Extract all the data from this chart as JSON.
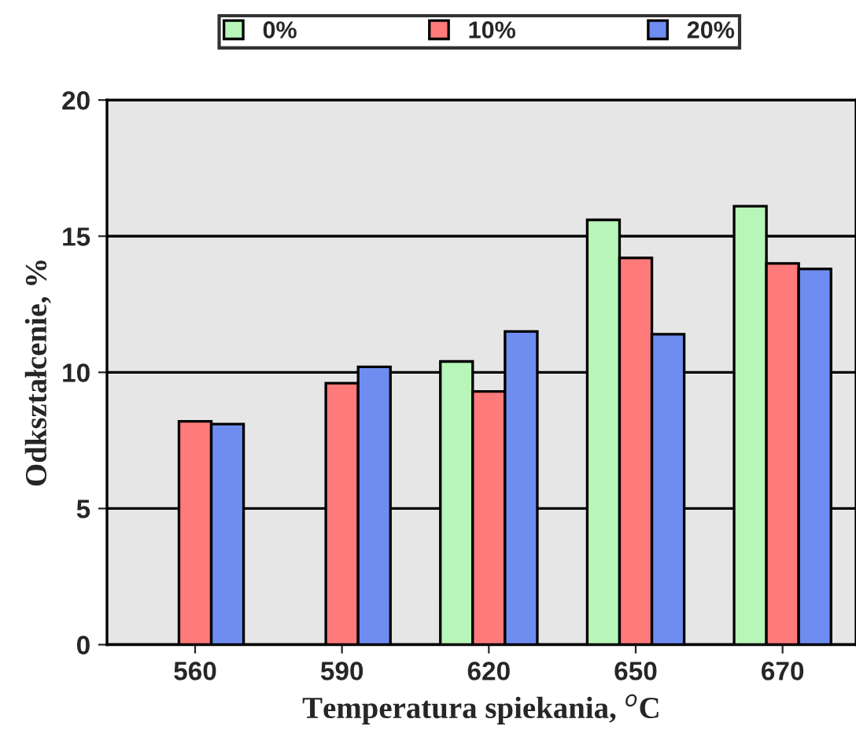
{
  "chart_data": {
    "type": "bar",
    "xlabel": "Temperatura spiekania, $^{o}$C",
    "ylabel": "Odkształcenie, %",
    "categories": [
      "560",
      "590",
      "620",
      "650",
      "670"
    ],
    "series": [
      {
        "name": "0%",
        "color": "#b8f5b8",
        "values": [
          null,
          null,
          10.4,
          15.6,
          16.1
        ]
      },
      {
        "name": "10%",
        "color": "#ff7a7a",
        "values": [
          8.2,
          9.6,
          9.3,
          14.2,
          14.0
        ]
      },
      {
        "name": "20%",
        "color": "#6f8cf0",
        "values": [
          8.1,
          10.2,
          11.5,
          11.4,
          13.8
        ]
      }
    ],
    "ylim": [
      0,
      20
    ],
    "yticks": [
      0,
      5,
      10,
      15,
      20
    ],
    "grid": "y",
    "legend": "top"
  }
}
